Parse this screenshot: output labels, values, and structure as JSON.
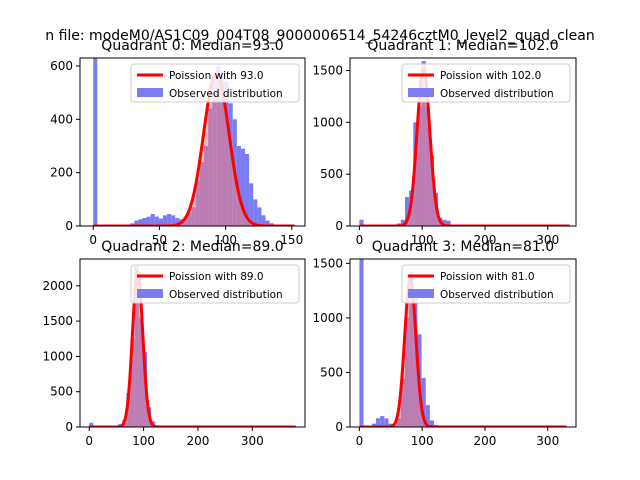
{
  "suptitle": "n file: modeM0/AS1C09_004T08_9000006514_54246cztM0_level2_quad_clean",
  "colors": {
    "hist": "#7b7bf2",
    "poisson_line": "#ff0000",
    "poisson_fill": "#f08080"
  },
  "chart_data": [
    {
      "type": "bar",
      "title": "Quadrant 0: Median=93.0",
      "median": 93.0,
      "xlim": [
        -10,
        160
      ],
      "ylim": [
        0,
        630
      ],
      "xticks": [
        0,
        50,
        100,
        150
      ],
      "yticks": [
        0,
        200,
        400,
        600
      ],
      "legend": {
        "location": "top-right",
        "entries": [
          "Poission with 93.0",
          "Observed distribution"
        ]
      },
      "bin_width": 3.1,
      "bins": [
        [
          0,
          630
        ],
        [
          9.3,
          2
        ],
        [
          12.4,
          2
        ],
        [
          15.5,
          2
        ],
        [
          18.6,
          2
        ],
        [
          21.7,
          3
        ],
        [
          24.8,
          5
        ],
        [
          27.9,
          10
        ],
        [
          31,
          20
        ],
        [
          34.1,
          25
        ],
        [
          37.2,
          30
        ],
        [
          40.3,
          35
        ],
        [
          43.4,
          45
        ],
        [
          46.5,
          35
        ],
        [
          49.6,
          28
        ],
        [
          52.7,
          40
        ],
        [
          55.8,
          45
        ],
        [
          58.9,
          40
        ],
        [
          62,
          30
        ],
        [
          65.1,
          25
        ],
        [
          68.2,
          35
        ],
        [
          71.3,
          50
        ],
        [
          74.4,
          70
        ],
        [
          77.5,
          170
        ],
        [
          80.6,
          240
        ],
        [
          83.7,
          300
        ],
        [
          86.8,
          440
        ],
        [
          89.9,
          550
        ],
        [
          93,
          600
        ],
        [
          96.1,
          580
        ],
        [
          99.2,
          540
        ],
        [
          102.3,
          460
        ],
        [
          105.4,
          400
        ],
        [
          108.5,
          300
        ],
        [
          111.6,
          290
        ],
        [
          114.7,
          270
        ],
        [
          117.8,
          160
        ],
        [
          120.9,
          100
        ],
        [
          124,
          70
        ],
        [
          127.1,
          40
        ],
        [
          130.2,
          20
        ],
        [
          133.3,
          10
        ],
        [
          136.4,
          5
        ],
        [
          139.5,
          3
        ]
      ],
      "poisson": {
        "mean": 93.0,
        "peak": 570,
        "x_range": [
          0,
          152
        ]
      }
    },
    {
      "type": "bar",
      "title": "Quadrant 1: Median=102.0",
      "median": 102.0,
      "xlim": [
        -15,
        345
      ],
      "ylim": [
        0,
        1620
      ],
      "xticks": [
        0,
        100,
        200,
        300
      ],
      "yticks": [
        0,
        500,
        1000,
        1500
      ],
      "legend": {
        "location": "top-right",
        "entries": [
          "Poission with 102.0",
          "Observed distribution"
        ]
      },
      "bin_width": 6.6,
      "bins": [
        [
          0,
          60
        ],
        [
          6.6,
          5
        ],
        [
          13.2,
          3
        ],
        [
          19.8,
          3
        ],
        [
          26.4,
          5
        ],
        [
          33,
          5
        ],
        [
          39.6,
          10
        ],
        [
          46.2,
          10
        ],
        [
          52.8,
          15
        ],
        [
          59.4,
          25
        ],
        [
          66,
          60
        ],
        [
          72.6,
          280
        ],
        [
          79.2,
          340
        ],
        [
          85.8,
          1000
        ],
        [
          92.4,
          1150
        ],
        [
          99,
          1590
        ],
        [
          105.6,
          1150
        ],
        [
          112.2,
          680
        ],
        [
          118.8,
          320
        ],
        [
          125.4,
          80
        ],
        [
          132,
          60
        ],
        [
          138.6,
          50
        ]
      ],
      "poisson": {
        "mean": 102.0,
        "peak": 1520,
        "x_range": [
          0,
          335
        ]
      }
    },
    {
      "type": "bar",
      "title": "Quadrant 2: Median=89.0",
      "median": 89.0,
      "xlim": [
        -17,
        397
      ],
      "ylim": [
        0,
        2380
      ],
      "xticks": [
        0,
        100,
        200,
        300
      ],
      "yticks": [
        0,
        500,
        1000,
        1500,
        2000
      ],
      "legend": {
        "location": "top-right",
        "entries": [
          "Poission with 89.0",
          "Observed distribution"
        ]
      },
      "bin_width": 7.6,
      "bins": [
        [
          0,
          60
        ],
        [
          7.6,
          5
        ],
        [
          15.2,
          3
        ],
        [
          22.8,
          3
        ],
        [
          30.4,
          5
        ],
        [
          38,
          10
        ],
        [
          45.6,
          15
        ],
        [
          53.2,
          40
        ],
        [
          60.8,
          100
        ],
        [
          68.4,
          480
        ],
        [
          76,
          1250
        ],
        [
          83.6,
          2280
        ],
        [
          91.2,
          1550
        ],
        [
          98.8,
          1060
        ],
        [
          106.4,
          280
        ],
        [
          114,
          80
        ],
        [
          121.6,
          20
        ],
        [
          129.2,
          10
        ]
      ],
      "poisson": {
        "mean": 89.0,
        "peak": 2200,
        "x_range": [
          0,
          380
        ]
      }
    },
    {
      "type": "bar",
      "title": "Quadrant 3: Median=81.0",
      "median": 81.0,
      "xlim": [
        -15,
        345
      ],
      "ylim": [
        0,
        1540
      ],
      "xticks": [
        0,
        100,
        200,
        300
      ],
      "yticks": [
        0,
        500,
        1000,
        1500
      ],
      "legend": {
        "location": "top-right",
        "entries": [
          "Poission with 81.0",
          "Observed distribution"
        ]
      },
      "bin_width": 6.6,
      "bins": [
        [
          0,
          1540
        ],
        [
          6.6,
          10
        ],
        [
          13.2,
          10
        ],
        [
          19.8,
          30
        ],
        [
          26.4,
          80
        ],
        [
          33,
          100
        ],
        [
          39.6,
          80
        ],
        [
          46.2,
          30
        ],
        [
          52.8,
          20
        ],
        [
          59.4,
          80
        ],
        [
          66,
          440
        ],
        [
          72.6,
          1000
        ],
        [
          79.2,
          1420
        ],
        [
          85.8,
          1180
        ],
        [
          92.4,
          850
        ],
        [
          99,
          450
        ],
        [
          105.6,
          200
        ],
        [
          112.2,
          60
        ],
        [
          118.8,
          20
        ]
      ],
      "poisson": {
        "mean": 81.0,
        "peak": 1360,
        "x_range": [
          0,
          330
        ]
      }
    }
  ]
}
